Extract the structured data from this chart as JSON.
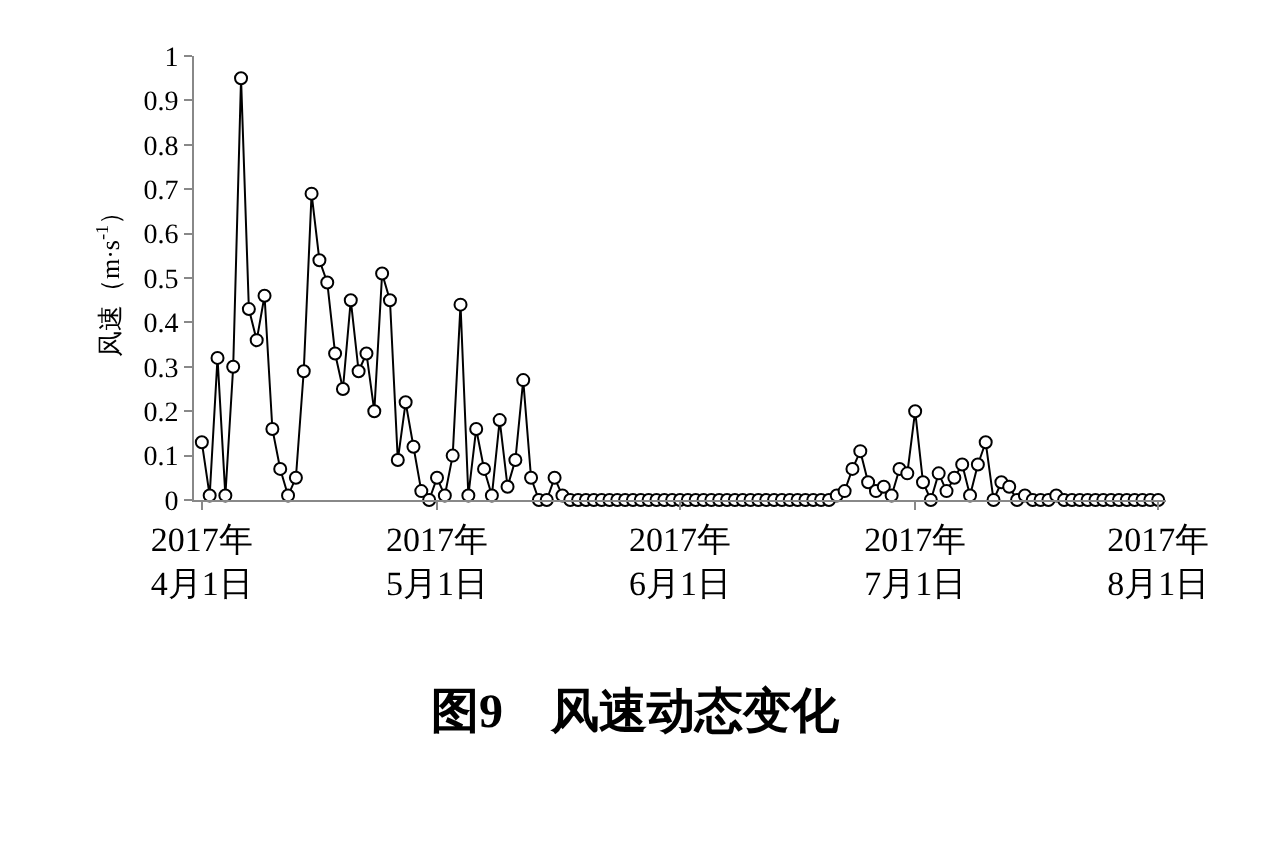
{
  "chart_data": {
    "type": "line",
    "title": "图9　风速动态变化",
    "ylabel": "风速（m·s$^{-1}$）",
    "x": [
      "2017-04-01",
      "2017-04-02",
      "2017-04-03",
      "2017-04-04",
      "2017-04-05",
      "2017-04-06",
      "2017-04-07",
      "2017-04-08",
      "2017-04-09",
      "2017-04-10",
      "2017-04-11",
      "2017-04-12",
      "2017-04-13",
      "2017-04-14",
      "2017-04-15",
      "2017-04-16",
      "2017-04-17",
      "2017-04-18",
      "2017-04-19",
      "2017-04-20",
      "2017-04-21",
      "2017-04-22",
      "2017-04-23",
      "2017-04-24",
      "2017-04-25",
      "2017-04-26",
      "2017-04-27",
      "2017-04-28",
      "2017-04-29",
      "2017-04-30",
      "2017-05-01",
      "2017-05-02",
      "2017-05-03",
      "2017-05-04",
      "2017-05-05",
      "2017-05-06",
      "2017-05-07",
      "2017-05-08",
      "2017-05-09",
      "2017-05-10",
      "2017-05-11",
      "2017-05-12",
      "2017-05-13",
      "2017-05-14",
      "2017-05-15",
      "2017-05-16",
      "2017-05-17",
      "2017-05-18",
      "2017-05-19",
      "2017-05-20",
      "2017-05-21",
      "2017-05-22",
      "2017-05-23",
      "2017-05-24",
      "2017-05-25",
      "2017-05-26",
      "2017-05-27",
      "2017-05-28",
      "2017-05-29",
      "2017-05-30",
      "2017-05-31",
      "2017-06-01",
      "2017-06-02",
      "2017-06-03",
      "2017-06-04",
      "2017-06-05",
      "2017-06-06",
      "2017-06-07",
      "2017-06-08",
      "2017-06-09",
      "2017-06-10",
      "2017-06-11",
      "2017-06-12",
      "2017-06-13",
      "2017-06-14",
      "2017-06-15",
      "2017-06-16",
      "2017-06-17",
      "2017-06-18",
      "2017-06-19",
      "2017-06-20",
      "2017-06-21",
      "2017-06-22",
      "2017-06-23",
      "2017-06-24",
      "2017-06-25",
      "2017-06-26",
      "2017-06-27",
      "2017-06-28",
      "2017-06-29",
      "2017-06-30",
      "2017-07-01",
      "2017-07-02",
      "2017-07-03",
      "2017-07-04",
      "2017-07-05",
      "2017-07-06",
      "2017-07-07",
      "2017-07-08",
      "2017-07-09",
      "2017-07-10",
      "2017-07-11",
      "2017-07-12",
      "2017-07-13",
      "2017-07-14",
      "2017-07-15",
      "2017-07-16",
      "2017-07-17",
      "2017-07-18",
      "2017-07-19",
      "2017-07-20",
      "2017-07-21",
      "2017-07-22",
      "2017-07-23",
      "2017-07-24",
      "2017-07-25",
      "2017-07-26",
      "2017-07-27",
      "2017-07-28",
      "2017-07-29",
      "2017-07-30",
      "2017-07-31",
      "2017-08-01"
    ],
    "series": [
      {
        "color": "#000000",
        "values": [
          0.13,
          0.01,
          0.32,
          0.01,
          0.3,
          0.95,
          0.43,
          0.36,
          0.46,
          0.16,
          0.07,
          0.01,
          0.05,
          0.29,
          0.69,
          0.54,
          0.49,
          0.33,
          0.25,
          0.45,
          0.29,
          0.33,
          0.2,
          0.51,
          0.45,
          0.09,
          0.22,
          0.12,
          0.02,
          0.0,
          0.05,
          0.01,
          0.1,
          0.44,
          0.01,
          0.16,
          0.07,
          0.01,
          0.18,
          0.03,
          0.09,
          0.27,
          0.05,
          0.0,
          0.0,
          0.05,
          0.01,
          0,
          0,
          0,
          0,
          0,
          0,
          0,
          0,
          0,
          0,
          0,
          0,
          0,
          0,
          0,
          0,
          0,
          0,
          0,
          0,
          0,
          0,
          0,
          0,
          0,
          0,
          0,
          0,
          0,
          0,
          0,
          0,
          0,
          0,
          0.01,
          0.02,
          0.07,
          0.11,
          0.04,
          0.02,
          0.03,
          0.01,
          0.07,
          0.06,
          0.2,
          0.04,
          0.0,
          0.06,
          0.02,
          0.05,
          0.08,
          0.01,
          0.08,
          0.13,
          0.0,
          0.04,
          0.03,
          0.0,
          0.01,
          0.0,
          0.0,
          0.0,
          0.01,
          0,
          0,
          0,
          0,
          0,
          0,
          0,
          0,
          0,
          0,
          0,
          0,
          0
        ]
      }
    ],
    "xlim": [
      "2017-03-31",
      "2017-08-02"
    ],
    "xticks": [
      {
        "value": "2017-04-01",
        "label": "2017年\n4月1日"
      },
      {
        "value": "2017-05-01",
        "label": "2017年\n5月1日"
      },
      {
        "value": "2017-06-01",
        "label": "2017年\n6月1日"
      },
      {
        "value": "2017-07-01",
        "label": "2017年\n7月1日"
      },
      {
        "value": "2017-08-01",
        "label": "2017年\n8月1日"
      }
    ],
    "ylim": [
      0,
      1
    ],
    "yticks": [
      0,
      0.1,
      0.2,
      0.3,
      0.4,
      0.5,
      0.6,
      0.7,
      0.8,
      0.9,
      1
    ],
    "marker": "circle",
    "line_style": "solid"
  }
}
